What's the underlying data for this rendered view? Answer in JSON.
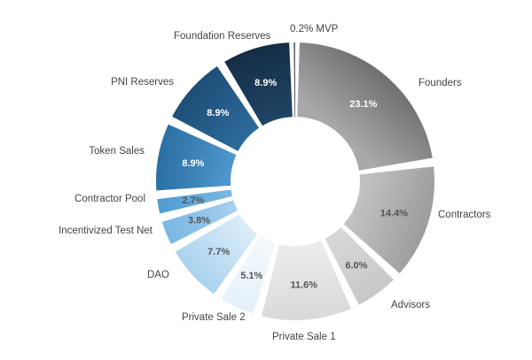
{
  "chart_data": {
    "type": "pie",
    "style": "donut",
    "slices": [
      {
        "label": "Founders",
        "value": 23.1,
        "display": "23.1%",
        "color": "#6f6f6f",
        "color2": "#a9a9a9"
      },
      {
        "label": "Contractors",
        "value": 14.4,
        "display": "14.4%",
        "color": "#9c9c9c",
        "color2": "#c2c2c2"
      },
      {
        "label": "Advisors",
        "value": 6.0,
        "display": "6.0%",
        "color": "#c8c8c8",
        "color2": "#d8d8d8"
      },
      {
        "label": "Private Sale 1",
        "value": 11.6,
        "display": "11.6%",
        "color": "#d9d9d9",
        "color2": "#ececec"
      },
      {
        "label": "Private Sale 2",
        "value": 5.1,
        "display": "5.1%",
        "color": "#e4f1fa",
        "color2": "#f3f9fd"
      },
      {
        "label": "DAO",
        "value": 7.7,
        "display": "7.7%",
        "color": "#a9d2ee",
        "color2": "#dcedf9"
      },
      {
        "label": "Incentivized Test Net",
        "value": 3.8,
        "display": "3.8%",
        "color": "#79b7e2",
        "color2": "#a7d0ee"
      },
      {
        "label": "Contractor  Pool",
        "value": 2.7,
        "display": "2.7%",
        "color": "#4e9bd2",
        "color2": "#7cb8e2"
      },
      {
        "label": "Token Sales",
        "value": 8.9,
        "display": "8.9%",
        "color": "#2a6fa4",
        "color2": "#4f97cc"
      },
      {
        "label": "PNI Reserves",
        "value": 8.9,
        "display": "8.9%",
        "color": "#1d4e76",
        "color2": "#2d6a9c"
      },
      {
        "label": "Foundation Reserves",
        "value": 8.9,
        "display": "8.9%",
        "color": "#152d45",
        "color2": "#1f4466"
      },
      {
        "label": "MVP",
        "value": 0.2,
        "display": "0.2%",
        "color": "#0f1d2b",
        "color2": "#0f1d2b"
      }
    ],
    "legend": "none",
    "data_labels": "inside"
  }
}
